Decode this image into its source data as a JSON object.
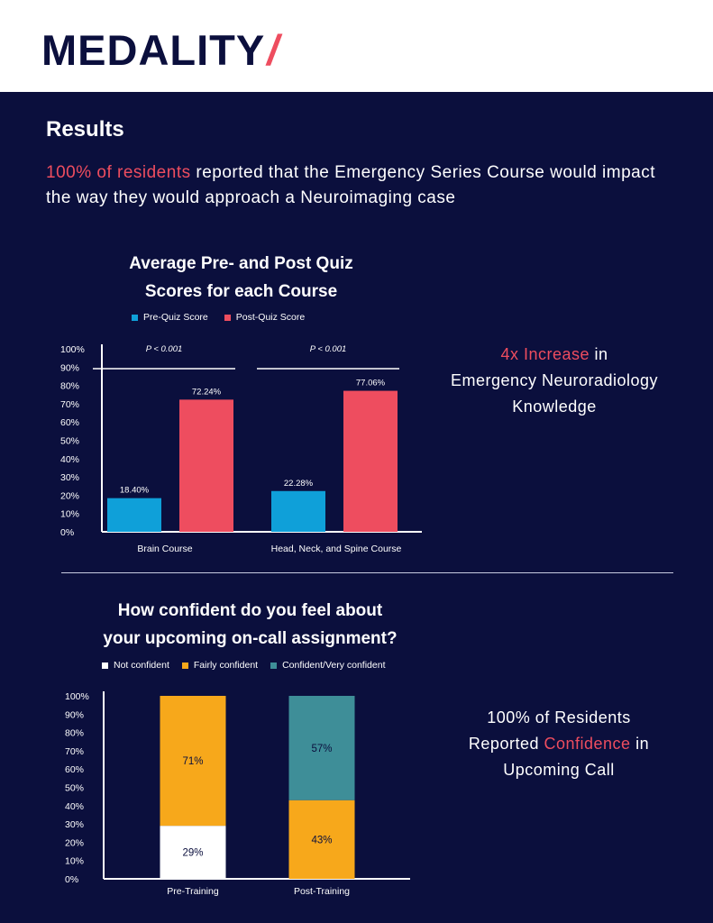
{
  "header": {
    "logo_text": "MEDALITY",
    "logo_slash": "/"
  },
  "results": {
    "title": "Results",
    "intro_highlight": "100% of residents",
    "intro_rest": " reported that the Emergency Series Course would impact the way they would approach a Neuroimaging case"
  },
  "stat1": {
    "highlight": "4x Increase",
    "rest_line1": " in",
    "line2": "Emergency Neuroradiology",
    "line3": "Knowledge"
  },
  "stat2": {
    "line1": "100% of Residents",
    "line2_pre": "Reported ",
    "line2_highlight": "Confidence",
    "line2_post": " in",
    "line3": "Upcoming Call"
  },
  "colors": {
    "background": "#0b0f3d",
    "accent_red": "#ee4d5f",
    "pre_blue": "#0fa0d9",
    "post_red": "#ee4d5f",
    "not_confident": "#ffffff",
    "fairly_confident": "#f7a81b",
    "confident": "#3e8e98"
  },
  "chart_data": [
    {
      "type": "bar",
      "title_line1": "Average Pre- and Post Quiz",
      "title_line2": "Scores for each Course",
      "categories": [
        "Brain Course",
        "Head, Neck, and Spine Course"
      ],
      "series": [
        {
          "name": "Pre-Quiz Score",
          "values": [
            18.4,
            22.28
          ],
          "labels": [
            "18.40%",
            "22.28%"
          ]
        },
        {
          "name": "Post-Quiz Score",
          "values": [
            72.24,
            77.06
          ],
          "labels": [
            "72.24%",
            "77.06%"
          ]
        }
      ],
      "annotations": [
        "P < 0.001",
        "P < 0.001"
      ],
      "yticks": [
        "0%",
        "10%",
        "20%",
        "30%",
        "40%",
        "50%",
        "60%",
        "70%",
        "80%",
        "90%",
        "100%"
      ],
      "ylim": [
        0,
        100
      ],
      "legend": "top"
    },
    {
      "type": "bar",
      "stacked": true,
      "title_line1": "How confident do you feel about",
      "title_line2": "your upcoming on-call assignment?",
      "categories": [
        "Pre-Training",
        "Post-Training"
      ],
      "series": [
        {
          "name": "Not confident",
          "values": [
            29,
            0
          ],
          "labels": [
            "29%",
            ""
          ]
        },
        {
          "name": "Fairly confident",
          "values": [
            71,
            43
          ],
          "labels": [
            "71%",
            "43%"
          ]
        },
        {
          "name": "Confident/Very confident",
          "values": [
            0,
            57
          ],
          "labels": [
            "",
            "57%"
          ]
        }
      ],
      "yticks": [
        "0%",
        "10%",
        "20%",
        "30%",
        "40%",
        "50%",
        "60%",
        "70%",
        "80%",
        "90%",
        "100%"
      ],
      "ylim": [
        0,
        100
      ],
      "legend": "top"
    }
  ]
}
